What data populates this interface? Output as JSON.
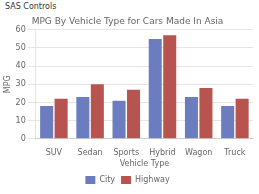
{
  "chart_data": {
    "type": "bar",
    "title": "MPG By Vehicle Type for Cars Made In Asia",
    "xlabel": "Vehicle Type",
    "ylabel": "MPG",
    "annotations": [
      "SAS Controls"
    ],
    "categories": [
      "SUV",
      "Sedan",
      "Sports",
      "Hybrid",
      "Wagon",
      "Truck"
    ],
    "series": [
      {
        "name": "City",
        "color": "#6B7DBF",
        "values": [
          18,
          23,
          21,
          55,
          23,
          18
        ]
      },
      {
        "name": "Highway",
        "color": "#B85450",
        "values": [
          22,
          30,
          27,
          57,
          28,
          22
        ]
      }
    ],
    "ylim": [
      0,
      60
    ],
    "yticks": [
      0,
      10,
      20,
      30,
      40,
      50,
      60
    ],
    "grid": true,
    "legend": "bottom"
  }
}
